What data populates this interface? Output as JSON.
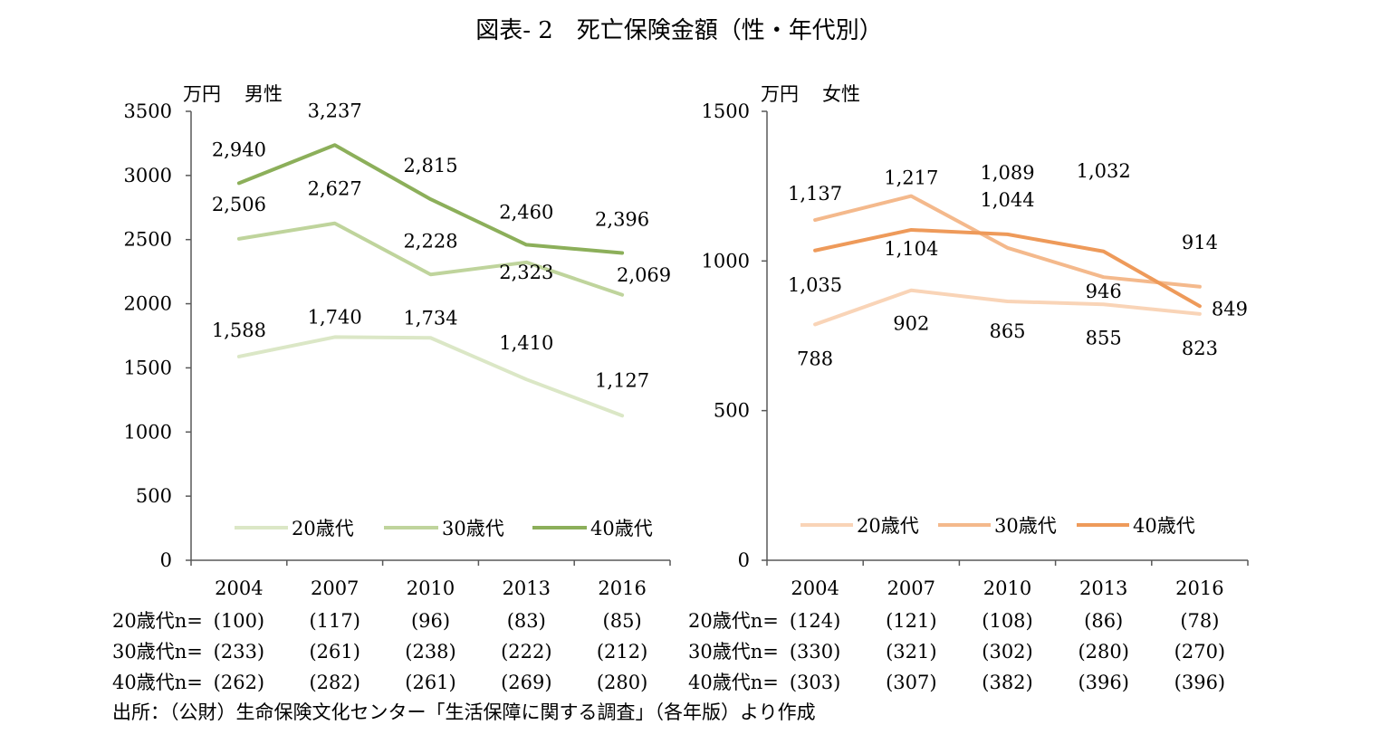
{
  "title": "図表- 2　死亡保険金額（性・年代別）",
  "source": "出所：（公財）生命保険文化センター「生活保障に関する調査」（各年版）より作成",
  "chart_data": [
    {
      "type": "line",
      "panel": "男性",
      "unit": "万円",
      "ylabel": "男性",
      "x": [
        "2004",
        "2007",
        "2010",
        "2013",
        "2016"
      ],
      "ylim": [
        0,
        3500
      ],
      "yticks": [
        "0",
        "500",
        "1000",
        "1500",
        "2000",
        "2500",
        "3000",
        "3500"
      ],
      "legend_position": "bottom",
      "grid": false,
      "series": [
        {
          "name": "20歳代",
          "color": "#dbe7c6",
          "values": [
            1588,
            1740,
            1734,
            1410,
            1127
          ],
          "labels": [
            "1,588",
            "1,740",
            "1,734",
            "1,410",
            "1,127"
          ],
          "n_label": "20歳代n=",
          "n": [
            "(100)",
            "(117)",
            "(96)",
            "(83)",
            "(85)"
          ]
        },
        {
          "name": "30歳代",
          "color": "#bfd49c",
          "values": [
            2506,
            2627,
            2228,
            2323,
            2069
          ],
          "labels": [
            "2,506",
            "2,627",
            "2,228",
            "2,323",
            "2,069"
          ],
          "n_label": "30歳代n=",
          "n": [
            "(233)",
            "(261)",
            "(238)",
            "(222)",
            "(212)"
          ]
        },
        {
          "name": "40歳代",
          "color": "#8caf5a",
          "values": [
            2940,
            3237,
            2815,
            2460,
            2396
          ],
          "labels": [
            "2,940",
            "3,237",
            "2,815",
            "2,460",
            "2,396"
          ],
          "n_label": "40歳代n=",
          "n": [
            "(262)",
            "(282)",
            "(261)",
            "(269)",
            "(280)"
          ]
        }
      ]
    },
    {
      "type": "line",
      "panel": "女性",
      "unit": "万円",
      "ylabel": "女性",
      "x": [
        "2004",
        "2007",
        "2010",
        "2013",
        "2016"
      ],
      "ylim": [
        0,
        1500
      ],
      "yticks": [
        "0",
        "500",
        "1000",
        "1500"
      ],
      "legend_position": "bottom",
      "grid": false,
      "series": [
        {
          "name": "20歳代",
          "color": "#f9d4b7",
          "values": [
            788,
            902,
            865,
            855,
            823
          ],
          "labels": [
            "788",
            "902",
            "865",
            "855",
            "823"
          ],
          "n_label": "20歳代n=",
          "n": [
            "(124)",
            "(121)",
            "(108)",
            "(86)",
            "(78)"
          ]
        },
        {
          "name": "30歳代",
          "color": "#f4b98c",
          "values": [
            1137,
            1217,
            1044,
            946,
            914
          ],
          "labels": [
            "1,137",
            "1,217",
            "1,044",
            "946",
            "914"
          ],
          "n_label": "30歳代n=",
          "n": [
            "(330)",
            "(321)",
            "(302)",
            "(280)",
            "(270)"
          ]
        },
        {
          "name": "40歳代",
          "color": "#ee9a5a",
          "values": [
            1035,
            1104,
            1089,
            1032,
            849
          ],
          "labels": [
            "1,035",
            "1,104",
            "1,089",
            "1,032",
            "849"
          ],
          "n_label": "40歳代n=",
          "n": [
            "(303)",
            "(307)",
            "(382)",
            "(396)",
            "(396)"
          ]
        }
      ]
    }
  ]
}
